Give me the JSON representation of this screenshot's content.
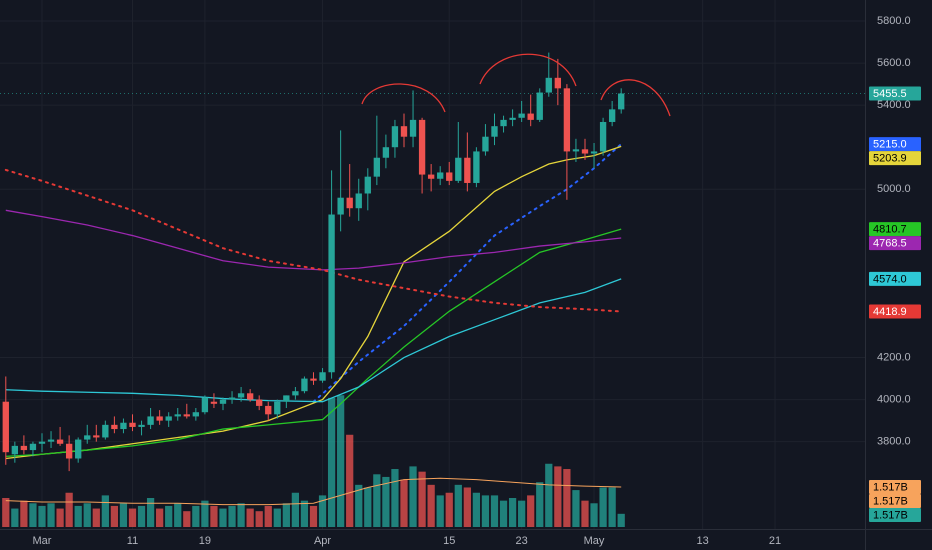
{
  "chart_data": {
    "type": "candlestick",
    "up_color": "#26a69a",
    "down_color": "#ef5350",
    "grid": true,
    "xlim": [
      -4.64,
      90.94
    ],
    "xticks": [
      {
        "value": 0,
        "label": "Mar"
      },
      {
        "value": 10,
        "label": "11"
      },
      {
        "value": 18,
        "label": "19"
      },
      {
        "value": 31,
        "label": "Apr"
      },
      {
        "value": 45,
        "label": "15"
      },
      {
        "value": 53,
        "label": "23"
      },
      {
        "value": 61,
        "label": "May"
      },
      {
        "value": 73,
        "label": "13"
      },
      {
        "value": 81,
        "label": "21"
      }
    ],
    "ylim": [
      3380,
      5900
    ],
    "yticks": [
      {
        "value": 3800,
        "label": "3800.0"
      },
      {
        "value": 4000,
        "label": "4000.0"
      },
      {
        "value": 4200,
        "label": "4200.0"
      },
      {
        "value": 5000,
        "label": "5000.0"
      },
      {
        "value": 5400,
        "label": "5400.0"
      },
      {
        "value": 5600,
        "label": "5600.0"
      },
      {
        "value": 5800,
        "label": "5800.0"
      }
    ],
    "last_price": 5455.5,
    "candles": {
      "x": [
        -4,
        -3,
        -2,
        -1,
        0,
        1,
        2,
        3,
        4,
        5,
        6,
        7,
        8,
        9,
        10,
        11,
        12,
        13,
        14,
        15,
        16,
        17,
        18,
        19,
        20,
        21,
        22,
        23,
        24,
        25,
        26,
        27,
        28,
        29,
        30,
        31,
        32,
        33,
        34,
        35,
        36,
        37,
        38,
        39,
        40,
        41,
        42,
        43,
        44,
        45,
        46,
        47,
        48,
        49,
        50,
        51,
        52,
        53,
        54,
        55,
        56,
        57,
        58,
        59,
        60,
        61,
        62,
        63,
        64
      ],
      "open": [
        3990,
        3740,
        3780,
        3760,
        3790,
        3800,
        3810,
        3790,
        3720,
        3810,
        3830,
        3820,
        3880,
        3860,
        3890,
        3870,
        3880,
        3920,
        3900,
        3920,
        3930,
        3920,
        3940,
        3990,
        3980,
        4000,
        4010,
        4030,
        4000,
        3970,
        3930,
        3990,
        4020,
        4040,
        4100,
        4090,
        4130,
        4880,
        4960,
        4910,
        4980,
        5060,
        5150,
        5200,
        5300,
        5250,
        5330,
        5070,
        5050,
        5080,
        5040,
        5150,
        5030,
        5180,
        5250,
        5300,
        5330,
        5340,
        5360,
        5330,
        5460,
        5530,
        5480,
        5180,
        5190,
        5170,
        5180,
        5320,
        5380
      ],
      "high": [
        4110,
        3800,
        3830,
        3800,
        3840,
        3850,
        3870,
        3830,
        3820,
        3880,
        3880,
        3900,
        3920,
        3910,
        3930,
        3900,
        3960,
        3950,
        3940,
        3960,
        3980,
        3960,
        4020,
        4030,
        4010,
        4040,
        4060,
        4050,
        4020,
        3990,
        4000,
        4020,
        4060,
        4110,
        4130,
        4150,
        5090,
        5280,
        5120,
        5050,
        5100,
        5350,
        5260,
        5330,
        5360,
        5470,
        5340,
        5120,
        5110,
        5130,
        5320,
        5270,
        5200,
        5310,
        5360,
        5350,
        5380,
        5420,
        5450,
        5480,
        5650,
        5620,
        5500,
        5240,
        5240,
        5220,
        5340,
        5420,
        5480
      ],
      "low": [
        3690,
        3700,
        3740,
        3730,
        3750,
        3770,
        3780,
        3660,
        3700,
        3790,
        3800,
        3810,
        3840,
        3840,
        3850,
        3830,
        3860,
        3880,
        3870,
        3900,
        3910,
        3900,
        3930,
        3960,
        3950,
        3980,
        3990,
        3990,
        3950,
        3900,
        3910,
        3960,
        4000,
        4030,
        4070,
        4080,
        4100,
        4800,
        4870,
        4850,
        4900,
        5020,
        5100,
        5150,
        5200,
        5200,
        4980,
        4990,
        5020,
        5020,
        5030,
        4990,
        5010,
        5160,
        5210,
        5270,
        5300,
        5320,
        5300,
        5320,
        5440,
        5400,
        4950,
        5130,
        5140,
        5100,
        5160,
        5300,
        5360
      ],
      "close": [
        3750,
        3780,
        3760,
        3790,
        3800,
        3810,
        3790,
        3720,
        3810,
        3830,
        3820,
        3880,
        3860,
        3890,
        3870,
        3880,
        3920,
        3900,
        3920,
        3930,
        3920,
        3940,
        4010,
        3980,
        4000,
        4010,
        4030,
        4000,
        3970,
        3930,
        3990,
        4020,
        4040,
        4100,
        4090,
        4130,
        4880,
        4960,
        4910,
        4980,
        5060,
        5150,
        5200,
        5300,
        5250,
        5330,
        5070,
        5050,
        5080,
        5040,
        5150,
        5030,
        5180,
        5250,
        5300,
        5330,
        5340,
        5360,
        5330,
        5460,
        5530,
        5480,
        5180,
        5190,
        5170,
        5180,
        5320,
        5380,
        5455.5
      ]
    },
    "series": [
      {
        "color": "#2962ff",
        "style": "dotted",
        "x": [
          30,
          35,
          40,
          45,
          50,
          55,
          58,
          61,
          64
        ],
        "values": [
          3990,
          4180,
          4350,
          4560,
          4780,
          4920,
          5000,
          5100,
          5215
        ],
        "price_label": {
          "value": 5215,
          "label": "5215.0"
        }
      },
      {
        "color": "#e5d53b",
        "style": "solid",
        "x": [
          -4,
          0,
          5,
          10,
          15,
          20,
          25,
          31,
          33,
          36,
          40,
          45,
          50,
          53,
          56,
          58,
          61,
          64
        ],
        "values": [
          3720,
          3740,
          3760,
          3790,
          3820,
          3850,
          3900,
          4000,
          4100,
          4300,
          4655,
          4800,
          4990,
          5060,
          5120,
          5140,
          5160,
          5203.9
        ],
        "price_label": 5203.9
      },
      {
        "color": "#26c626",
        "style": "solid",
        "x": [
          -4,
          0,
          5,
          10,
          15,
          20,
          25,
          31,
          33,
          36,
          40,
          45,
          50,
          55,
          60,
          64
        ],
        "values": [
          3730,
          3740,
          3760,
          3780,
          3810,
          3860,
          3880,
          3905,
          3980,
          4100,
          4250,
          4420,
          4560,
          4700,
          4760,
          4810.7
        ],
        "price_label": {
          "value": 4810.7,
          "label": "4810.7"
        }
      },
      {
        "color": "#9c27b0",
        "style": "solid",
        "x": [
          -4,
          0,
          5,
          10,
          15,
          20,
          25,
          31,
          35,
          40,
          45,
          50,
          55,
          60,
          64
        ],
        "values": [
          4900,
          4870,
          4830,
          4780,
          4720,
          4660,
          4630,
          4617,
          4625,
          4650,
          4680,
          4700,
          4730,
          4750,
          4768.5
        ],
        "price_label": {
          "value": 4768.5,
          "label": "4768.5"
        }
      },
      {
        "color": "#2ec8d6",
        "style": "solid",
        "x": [
          -4,
          0,
          5,
          10,
          15,
          20,
          25,
          31,
          35,
          40,
          45,
          50,
          55,
          60,
          64
        ],
        "values": [
          4047,
          4040,
          4035,
          4030,
          4020,
          4005,
          3995,
          3990,
          4060,
          4200,
          4300,
          4380,
          4460,
          4510,
          4574
        ],
        "price_label": {
          "value": 4574,
          "label": "4574.0"
        }
      },
      {
        "color": "#e53935",
        "style": "dotted",
        "x": [
          -4,
          0,
          5,
          10,
          15,
          20,
          25,
          31,
          35,
          40,
          45,
          50,
          55,
          60,
          64
        ],
        "values": [
          5092,
          5040,
          4970,
          4900,
          4810,
          4720,
          4660,
          4617,
          4570,
          4530,
          4490,
          4460,
          4440,
          4430,
          4418.9
        ],
        "price_label": {
          "value": 4418.9,
          "label": "4418.9"
        }
      }
    ],
    "volume": {
      "ylim": [
        0,
        20
      ],
      "values": [
        1.1,
        0.7,
        1.0,
        0.9,
        0.8,
        0.9,
        0.7,
        1.3,
        0.8,
        0.9,
        0.7,
        1.2,
        0.8,
        0.9,
        0.7,
        0.8,
        1.1,
        0.7,
        0.8,
        0.9,
        0.6,
        0.8,
        1.0,
        0.8,
        0.7,
        0.8,
        0.9,
        0.7,
        0.6,
        0.8,
        0.7,
        0.9,
        1.3,
        1.0,
        0.8,
        1.2,
        4.9,
        5.0,
        3.5,
        1.6,
        1.5,
        2.0,
        1.9,
        2.2,
        1.8,
        2.3,
        2.1,
        1.6,
        1.2,
        1.3,
        1.6,
        1.5,
        1.3,
        1.2,
        1.2,
        1.0,
        1.1,
        1.0,
        1.2,
        1.7,
        2.4,
        2.3,
        2.2,
        1.4,
        1.0,
        0.9,
        1.5,
        1.5,
        0.5
      ],
      "ma_color": "#f7a35c",
      "ma_x": [
        -4,
        0,
        5,
        10,
        15,
        20,
        25,
        30,
        32,
        34,
        36,
        40,
        44,
        48,
        52,
        56,
        60,
        64
      ],
      "ma_values": [
        1.0,
        0.95,
        0.95,
        0.9,
        0.9,
        0.85,
        0.85,
        0.9,
        1.1,
        1.3,
        1.5,
        1.8,
        1.85,
        1.8,
        1.7,
        1.6,
        1.55,
        1.517
      ],
      "tags": [
        {
          "value": 1.517,
          "label": "1.517B",
          "color": "#f7a35c"
        },
        {
          "value": 1.517,
          "label": "1.517B",
          "color": "#f7a35c"
        },
        {
          "value": 1.517,
          "label": "1.517B",
          "color": "#26a69a"
        }
      ]
    }
  }
}
